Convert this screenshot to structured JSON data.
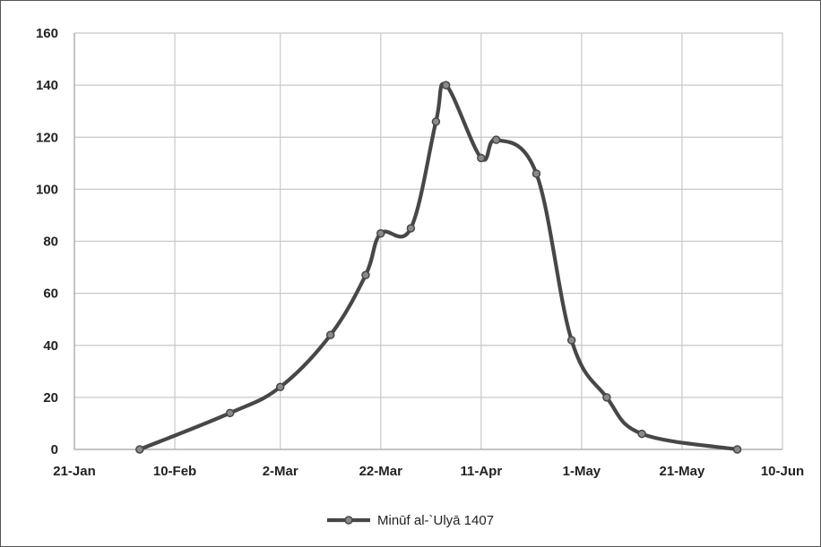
{
  "chart_data": {
    "type": "line",
    "title": "",
    "xlabel": "",
    "ylabel": "",
    "x_type": "date",
    "xlim": [
      "21-Jan",
      "10-Jun"
    ],
    "ylim": [
      0,
      160
    ],
    "x_ticks": [
      "21-Jan",
      "10-Feb",
      "2-Mar",
      "22-Mar",
      "11-Apr",
      "1-May",
      "21-May",
      "10-Jun"
    ],
    "y_ticks": [
      "0",
      "20",
      "40",
      "60",
      "80",
      "100",
      "120",
      "140",
      "160"
    ],
    "grid": true,
    "smooth": true,
    "legend_position": "bottom",
    "series": [
      {
        "name": "Minūf al-`Ulyā 1407",
        "color": "#474747",
        "points": [
          {
            "x": "3-Feb",
            "y": 0
          },
          {
            "x": "21-Feb",
            "y": 14
          },
          {
            "x": "2-Mar",
            "y": 24
          },
          {
            "x": "12-Mar",
            "y": 44
          },
          {
            "x": "19-Mar",
            "y": 67
          },
          {
            "x": "22-Mar",
            "y": 83
          },
          {
            "x": "28-Mar",
            "y": 85
          },
          {
            "x": "2-Apr",
            "y": 126
          },
          {
            "x": "4-Apr",
            "y": 140
          },
          {
            "x": "11-Apr",
            "y": 112
          },
          {
            "x": "14-Apr",
            "y": 119
          },
          {
            "x": "22-Apr",
            "y": 106
          },
          {
            "x": "29-Apr",
            "y": 42
          },
          {
            "x": "6-May",
            "y": 20
          },
          {
            "x": "13-May",
            "y": 6
          },
          {
            "x": "1-Jun",
            "y": 0
          }
        ]
      }
    ]
  }
}
